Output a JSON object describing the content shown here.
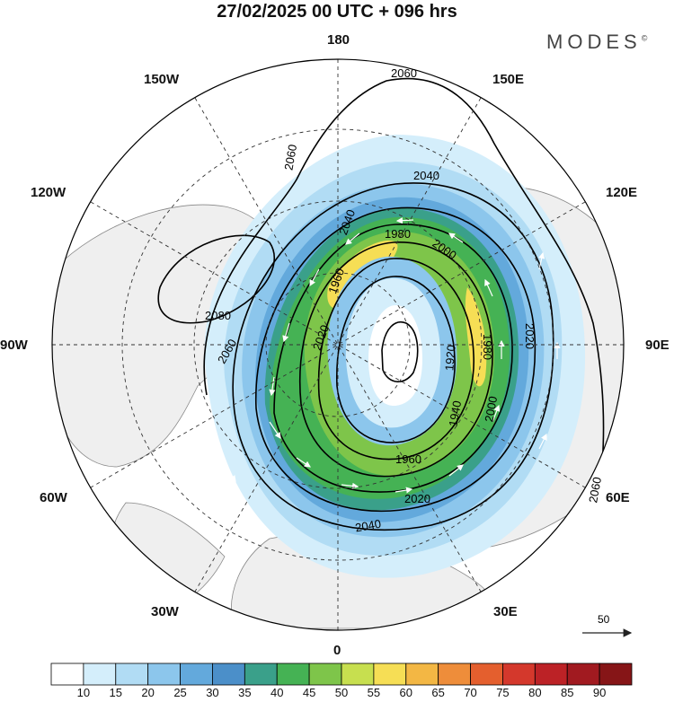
{
  "title": "27/02/2025  00 UTC  + 096 hrs",
  "brand": "MODES",
  "brand_mark": "©",
  "lon_labels": {
    "n180": "180",
    "e150": "150E",
    "e120": "120E",
    "e90": "90E",
    "e60": "60E",
    "e30": "30E",
    "s0": "0",
    "w30": "30W",
    "w60": "60W",
    "w90": "90W",
    "w120": "120W",
    "w150": "150W"
  },
  "contours": [
    "2080",
    "2060",
    "2060",
    "2060",
    "2060",
    "2040",
    "2040",
    "2040",
    "2020",
    "2020",
    "2020",
    "2000",
    "2000",
    "1980",
    "1980",
    "1960",
    "1960",
    "1940",
    "1920"
  ],
  "vector_scale": {
    "label": "50"
  },
  "colorbar": {
    "ticks": [
      "10",
      "15",
      "20",
      "25",
      "30",
      "35",
      "40",
      "45",
      "50",
      "55",
      "60",
      "65",
      "70",
      "75",
      "80",
      "85",
      "90"
    ],
    "colors": [
      "#ffffff",
      "#d4eefb",
      "#b1dcf4",
      "#8cc6ec",
      "#63a9dc",
      "#4b8fc9",
      "#3aa08a",
      "#45b254",
      "#7ec54a",
      "#c7df4f",
      "#f6de55",
      "#f3b744",
      "#ee8d3a",
      "#e45f2e",
      "#d4382c",
      "#bc2226",
      "#a11a20",
      "#861517"
    ]
  }
}
